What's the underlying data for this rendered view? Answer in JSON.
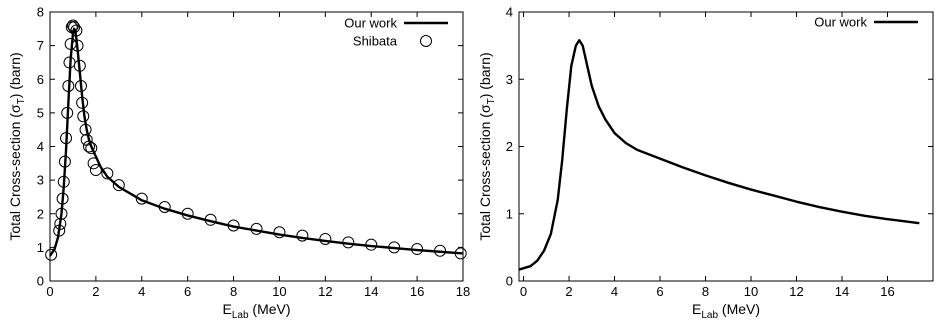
{
  "chart_data": [
    {
      "type": "line",
      "ylabel_main": "Total Cross-section (σ",
      "ylabel_sub": "T",
      "ylabel_tail": ") (barn)",
      "xlabel_main": "E",
      "xlabel_sub": "Lab",
      "xlabel_tail": " (MeV)",
      "xlim": [
        0,
        18
      ],
      "ylim": [
        0,
        8
      ],
      "xticks": [
        0,
        2,
        4,
        6,
        8,
        10,
        12,
        14,
        16,
        18
      ],
      "yticks": [
        0,
        1,
        2,
        3,
        4,
        5,
        6,
        7,
        8
      ],
      "legend_position": "top-right",
      "series": [
        {
          "name": "Our work",
          "style": "line",
          "x": [
            0,
            0.2,
            0.35,
            0.5,
            0.6,
            0.7,
            0.8,
            0.9,
            1.0,
            1.05,
            1.1,
            1.15,
            1.2,
            1.3,
            1.4,
            1.5,
            1.6,
            1.7,
            1.8,
            2.0,
            2.2,
            2.5,
            3.0,
            4.0,
            5.0,
            6.0,
            7.0,
            8.0,
            9.0,
            10.0,
            11.0,
            12.0,
            13.0,
            14.0,
            15.0,
            16.0,
            17.0,
            18.0
          ],
          "y": [
            0.75,
            0.95,
            1.3,
            2.0,
            2.8,
            3.9,
            5.3,
            6.6,
            7.35,
            7.5,
            7.45,
            7.2,
            6.9,
            6.2,
            5.5,
            4.9,
            4.5,
            4.2,
            4.0,
            3.7,
            3.4,
            3.1,
            2.8,
            2.4,
            2.15,
            1.95,
            1.78,
            1.62,
            1.5,
            1.38,
            1.28,
            1.19,
            1.11,
            1.04,
            0.98,
            0.92,
            0.87,
            0.82
          ]
        },
        {
          "name": "Shibata",
          "style": "marker",
          "x": [
            0.05,
            0.4,
            0.45,
            0.5,
            0.55,
            0.6,
            0.65,
            0.7,
            0.75,
            0.8,
            0.85,
            0.9,
            0.95,
            1.0,
            1.05,
            1.15,
            1.2,
            1.3,
            1.35,
            1.4,
            1.45,
            1.55,
            1.6,
            1.7,
            1.8,
            1.9,
            2.0,
            2.5,
            3.0,
            4.0,
            5.0,
            6.0,
            7.0,
            8.0,
            9.0,
            10.0,
            11.0,
            12.0,
            13.0,
            14.0,
            15.0,
            16.0,
            17.0,
            17.9
          ],
          "y": [
            0.78,
            1.5,
            1.7,
            2.0,
            2.45,
            2.95,
            3.55,
            4.25,
            5.0,
            5.8,
            6.5,
            7.05,
            7.55,
            7.6,
            7.55,
            7.45,
            7.0,
            6.4,
            5.8,
            5.3,
            4.9,
            4.5,
            4.2,
            4.0,
            3.95,
            3.5,
            3.3,
            3.2,
            2.85,
            2.45,
            2.2,
            2.0,
            1.82,
            1.65,
            1.55,
            1.45,
            1.35,
            1.25,
            1.15,
            1.08,
            1.0,
            0.95,
            0.9,
            0.82
          ]
        }
      ]
    },
    {
      "type": "line",
      "ylabel_main": "Total Cross-section (σ",
      "ylabel_sub": "T",
      "ylabel_tail": ") (barn)",
      "xlabel_main": "E",
      "xlabel_sub": "Lab",
      "xlabel_tail": " (MeV)",
      "xlim": [
        -0.2,
        18
      ],
      "ylim": [
        0,
        4
      ],
      "xticks": [
        0,
        2,
        4,
        6,
        8,
        10,
        12,
        14,
        16
      ],
      "yticks": [
        0,
        1,
        2,
        3,
        4
      ],
      "legend_position": "top-right",
      "series": [
        {
          "name": "Our work",
          "style": "line",
          "x": [
            -0.2,
            0.3,
            0.6,
            0.9,
            1.2,
            1.5,
            1.7,
            1.9,
            2.1,
            2.3,
            2.45,
            2.6,
            2.8,
            3.0,
            3.3,
            3.6,
            4.0,
            4.5,
            5.0,
            6.0,
            7.0,
            8.0,
            9.0,
            10.0,
            11.0,
            12.0,
            13.0,
            14.0,
            15.0,
            16.0,
            17.4
          ],
          "y": [
            0.17,
            0.22,
            0.3,
            0.45,
            0.7,
            1.2,
            1.8,
            2.55,
            3.2,
            3.5,
            3.58,
            3.5,
            3.2,
            2.9,
            2.6,
            2.4,
            2.2,
            2.05,
            1.95,
            1.82,
            1.69,
            1.57,
            1.46,
            1.36,
            1.27,
            1.18,
            1.1,
            1.03,
            0.97,
            0.92,
            0.86
          ]
        }
      ]
    }
  ]
}
